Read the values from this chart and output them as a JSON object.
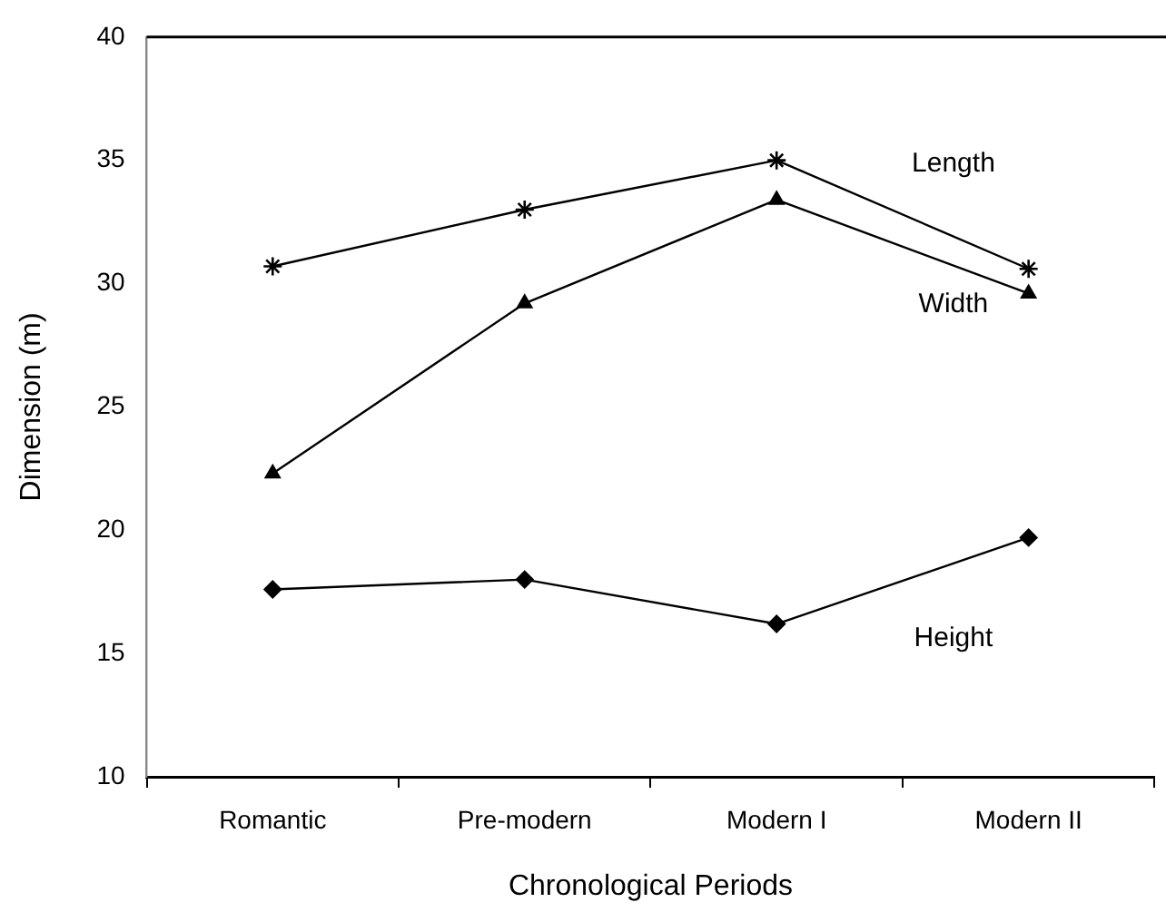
{
  "chart_data": {
    "type": "line",
    "xlabel": "Chronological Periods",
    "ylabel": "Dimension (m)",
    "categories": [
      "Romantic",
      "Pre-modern",
      "Modern I",
      "Modern II"
    ],
    "series": [
      {
        "name": "Length",
        "color": "#000000",
        "marker": "cross",
        "values": [
          30.7,
          33.0,
          35.0,
          30.6
        ]
      },
      {
        "name": "Width",
        "color": "#000000",
        "marker": "triangle",
        "values": [
          22.3,
          29.2,
          33.4,
          29.6
        ]
      },
      {
        "name": "Height",
        "color": "#000000",
        "marker": "diamond",
        "values": [
          17.6,
          18.0,
          16.2,
          19.7
        ]
      }
    ],
    "ylim": [
      10,
      40
    ],
    "yticks": [
      10,
      15,
      20,
      25,
      30,
      35,
      40
    ],
    "grid": false,
    "legend": false,
    "line_style": "solid"
  }
}
